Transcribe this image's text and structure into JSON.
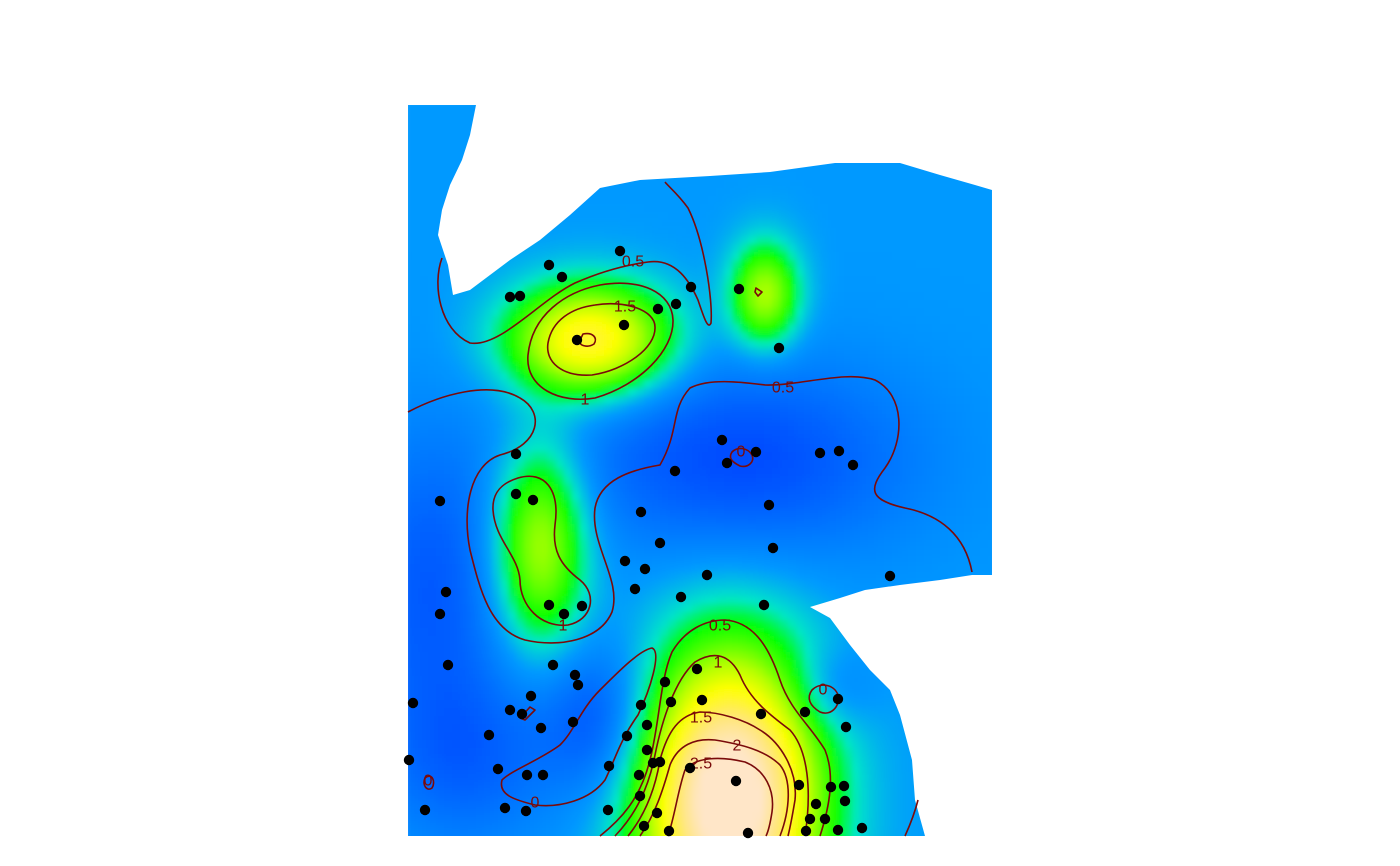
{
  "chart_data": {
    "type": "heatmap",
    "title": "",
    "xlabel": "",
    "ylabel": "",
    "axes_shown": false,
    "colorscale": [
      "#0000ff",
      "#0099ff",
      "#00ff00",
      "#ffff00",
      "#ffe6c8"
    ],
    "contour_color": "#7a0a0a",
    "point_color": "#000000",
    "contour_levels": [
      0,
      0.5,
      1,
      1.5,
      2,
      2.5
    ],
    "contour_labels": [
      {
        "text": "0.5",
        "x": 633,
        "y": 262
      },
      {
        "text": "1.5",
        "x": 625,
        "y": 307
      },
      {
        "text": "1",
        "x": 585,
        "y": 400
      },
      {
        "text": "0.5",
        "x": 783,
        "y": 388
      },
      {
        "text": "0",
        "x": 741,
        "y": 452
      },
      {
        "text": "1",
        "x": 563,
        "y": 626
      },
      {
        "text": "0.5",
        "x": 720,
        "y": 626
      },
      {
        "text": "1",
        "x": 718,
        "y": 663
      },
      {
        "text": "0",
        "x": 823,
        "y": 690
      },
      {
        "text": "1.5",
        "x": 701,
        "y": 718
      },
      {
        "text": "2",
        "x": 737,
        "y": 746
      },
      {
        "text": "2.5",
        "x": 701,
        "y": 764
      },
      {
        "text": "0",
        "x": 535,
        "y": 803
      },
      {
        "text": "0",
        "x": 428,
        "y": 781
      }
    ],
    "hotspots": [
      {
        "x": 590,
        "y": 340,
        "sx": 55,
        "sy": 38,
        "v": 1.8
      },
      {
        "x": 540,
        "y": 545,
        "sx": 32,
        "sy": 70,
        "v": 1.2
      },
      {
        "x": 765,
        "y": 295,
        "sx": 24,
        "sy": 36,
        "v": 1.15
      },
      {
        "x": 730,
        "y": 800,
        "sx": 60,
        "sy": 100,
        "v": 2.9
      },
      {
        "x": 740,
        "y": 460,
        "sx": 120,
        "sy": 70,
        "v": -0.55
      },
      {
        "x": 430,
        "y": 590,
        "sx": 60,
        "sy": 110,
        "v": -0.45
      },
      {
        "x": 600,
        "y": 720,
        "sx": 40,
        "sy": 55,
        "v": -0.5
      },
      {
        "x": 830,
        "y": 690,
        "sx": 30,
        "sy": 30,
        "v": -0.3
      },
      {
        "x": 470,
        "y": 760,
        "sx": 60,
        "sy": 60,
        "v": -0.35
      }
    ],
    "points": [
      [
        620,
        251
      ],
      [
        549,
        265
      ],
      [
        562,
        277
      ],
      [
        510,
        297
      ],
      [
        520,
        296
      ],
      [
        691,
        287
      ],
      [
        676,
        304
      ],
      [
        658,
        309
      ],
      [
        624,
        325
      ],
      [
        577,
        340
      ],
      [
        739,
        289
      ],
      [
        779,
        348
      ],
      [
        722,
        440
      ],
      [
        756,
        452
      ],
      [
        727,
        463
      ],
      [
        820,
        453
      ],
      [
        839,
        451
      ],
      [
        853,
        465
      ],
      [
        675,
        471
      ],
      [
        516,
        454
      ],
      [
        516,
        494
      ],
      [
        533,
        500
      ],
      [
        440,
        501
      ],
      [
        769,
        505
      ],
      [
        641,
        512
      ],
      [
        660,
        543
      ],
      [
        773,
        548
      ],
      [
        625,
        561
      ],
      [
        645,
        569
      ],
      [
        707,
        575
      ],
      [
        635,
        589
      ],
      [
        890,
        576
      ],
      [
        681,
        597
      ],
      [
        446,
        592
      ],
      [
        440,
        614
      ],
      [
        764,
        605
      ],
      [
        549,
        605
      ],
      [
        564,
        614
      ],
      [
        582,
        606
      ],
      [
        448,
        665
      ],
      [
        553,
        665
      ],
      [
        575,
        675
      ],
      [
        578,
        685
      ],
      [
        665,
        682
      ],
      [
        697,
        669
      ],
      [
        531,
        696
      ],
      [
        510,
        710
      ],
      [
        522,
        714
      ],
      [
        413,
        703
      ],
      [
        641,
        705
      ],
      [
        671,
        702
      ],
      [
        702,
        700
      ],
      [
        761,
        714
      ],
      [
        805,
        712
      ],
      [
        838,
        699
      ],
      [
        846,
        727
      ],
      [
        573,
        722
      ],
      [
        541,
        728
      ],
      [
        647,
        725
      ],
      [
        489,
        735
      ],
      [
        627,
        736
      ],
      [
        647,
        750
      ],
      [
        409,
        760
      ],
      [
        498,
        769
      ],
      [
        527,
        775
      ],
      [
        543,
        775
      ],
      [
        609,
        766
      ],
      [
        653,
        763
      ],
      [
        660,
        762
      ],
      [
        639,
        775
      ],
      [
        690,
        768
      ],
      [
        736,
        781
      ],
      [
        799,
        785
      ],
      [
        640,
        796
      ],
      [
        831,
        787
      ],
      [
        844,
        786
      ],
      [
        816,
        804
      ],
      [
        845,
        801
      ],
      [
        425,
        810
      ],
      [
        505,
        808
      ],
      [
        526,
        811
      ],
      [
        608,
        810
      ],
      [
        657,
        813
      ],
      [
        810,
        819
      ],
      [
        825,
        819
      ],
      [
        644,
        826
      ],
      [
        669,
        831
      ],
      [
        748,
        833
      ],
      [
        806,
        831
      ],
      [
        838,
        830
      ],
      [
        862,
        828
      ]
    ]
  }
}
